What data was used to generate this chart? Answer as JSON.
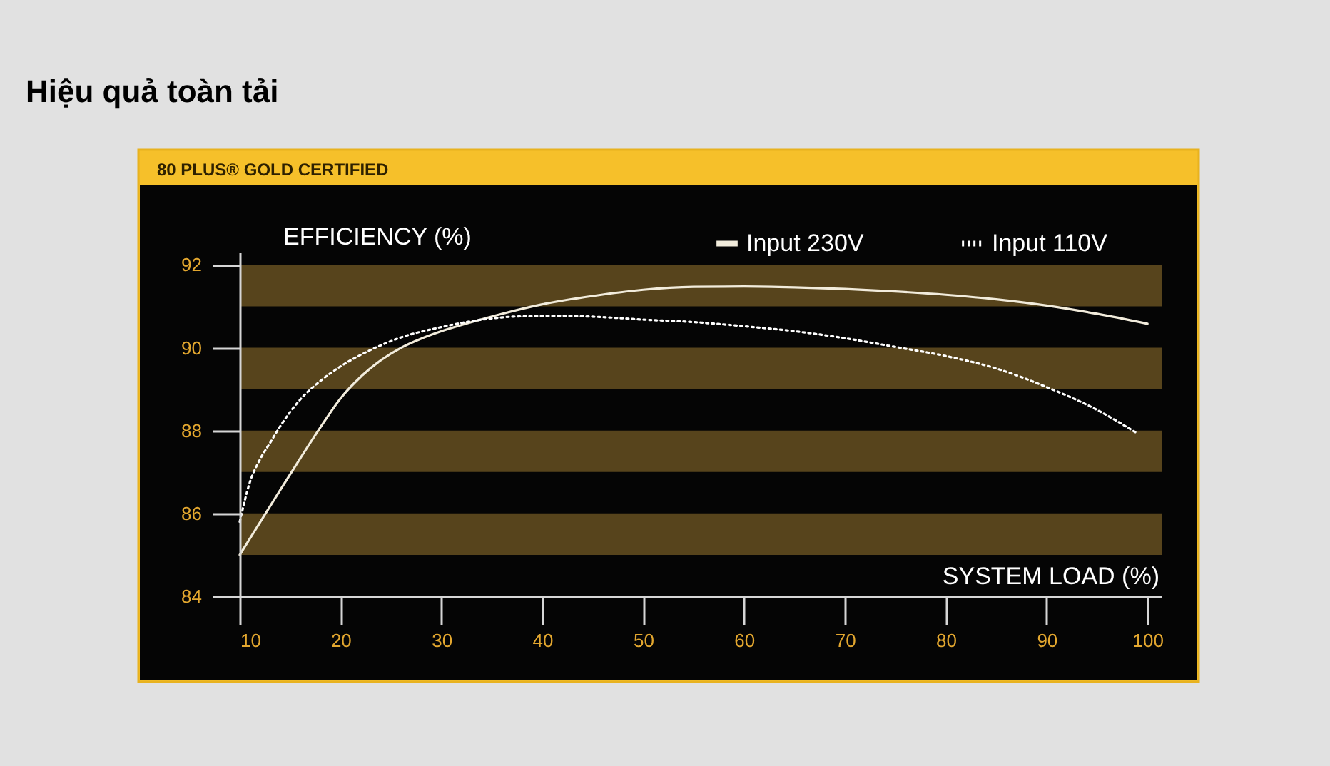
{
  "chart_data": {
    "type": "line",
    "title": "Hiệu quả toàn tải",
    "subtitle": "80 PLUS® GOLD CERTIFIED",
    "xlabel": "SYSTEM LOAD (%)",
    "ylabel": "EFFICIENCY (%)",
    "xlim": [
      10,
      101.4
    ],
    "xticks": [
      10,
      20,
      30,
      40,
      50,
      60,
      70,
      80,
      90,
      100
    ],
    "ylim": [
      84,
      92.3
    ],
    "yticks": [
      84,
      86,
      88,
      90,
      92
    ],
    "bands": [
      {
        "axis": "y",
        "from": 85,
        "to": 86,
        "color": "#57441c"
      },
      {
        "axis": "y",
        "from": 87,
        "to": 88,
        "color": "#57441c"
      },
      {
        "axis": "y",
        "from": 89,
        "to": 90,
        "color": "#57441c"
      },
      {
        "axis": "y",
        "from": 91,
        "to": 92,
        "color": "#57441c"
      }
    ],
    "legend": "top right",
    "series": [
      {
        "name": "Input 230V",
        "color": "#f2ecdc",
        "line_style": "solid",
        "x": [
          10,
          12,
          14,
          16,
          18,
          20,
          22,
          24,
          26,
          28,
          30,
          33,
          36,
          40,
          45,
          50,
          55,
          60,
          65,
          70,
          75,
          80,
          85,
          90,
          95,
          100
        ],
        "values": [
          85.0,
          85.78,
          86.56,
          87.33,
          88.08,
          88.78,
          89.3,
          89.7,
          90.0,
          90.22,
          90.4,
          90.62,
          90.82,
          91.05,
          91.25,
          91.4,
          91.47,
          91.48,
          91.46,
          91.42,
          91.36,
          91.28,
          91.17,
          91.02,
          90.82,
          90.58
        ]
      },
      {
        "name": "Input 110V",
        "color": "#ffffff",
        "line_style": "dotted",
        "x": [
          10,
          11,
          12,
          13,
          14,
          15,
          16,
          18,
          20,
          23,
          26,
          30,
          34,
          38,
          42,
          46,
          50,
          55,
          60,
          65,
          70,
          75,
          80,
          85,
          90,
          95,
          99
        ],
        "values": [
          85.8,
          86.75,
          87.3,
          87.7,
          88.1,
          88.45,
          88.75,
          89.2,
          89.55,
          89.95,
          90.25,
          90.5,
          90.68,
          90.76,
          90.77,
          90.74,
          90.68,
          90.62,
          90.52,
          90.4,
          90.23,
          90.02,
          89.8,
          89.5,
          89.05,
          88.5,
          87.93
        ]
      }
    ]
  }
}
